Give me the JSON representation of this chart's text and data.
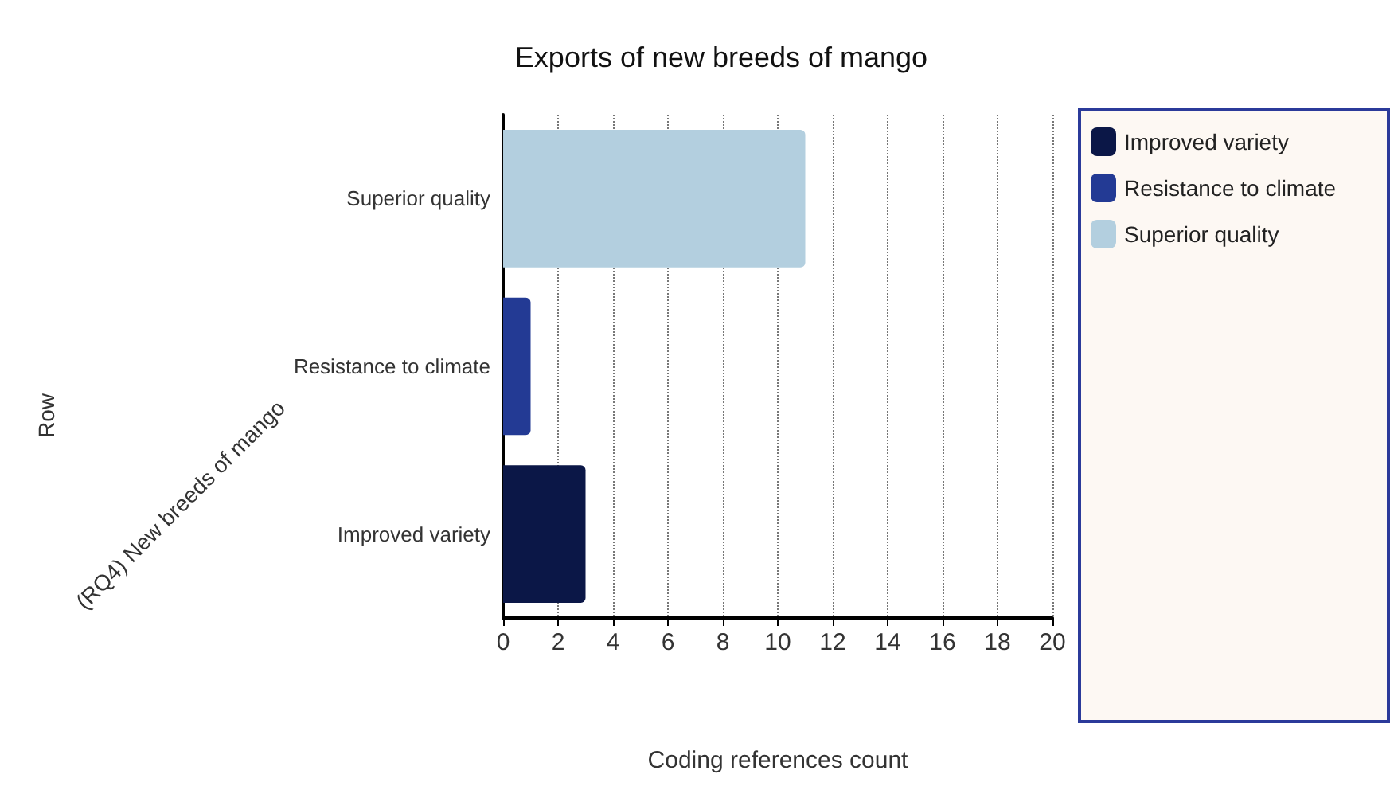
{
  "chart_data": {
    "type": "bar",
    "orientation": "horizontal",
    "title": "Exports of new breeds of mango",
    "xlabel": "Coding references count",
    "ylabel": "(RQ4) New breeds of mango",
    "annotations": [
      "Row"
    ],
    "categories": [
      "Superior quality",
      "Resistance to climate",
      "Improved variety"
    ],
    "series": [
      {
        "name": "Improved variety",
        "color": "#0b1747",
        "values": [
          null,
          null,
          3
        ]
      },
      {
        "name": "Resistance to climate",
        "color": "#233a94",
        "values": [
          null,
          1,
          null
        ]
      },
      {
        "name": "Superior quality",
        "color": "#b3cfdf",
        "values": [
          11,
          null,
          null
        ]
      }
    ],
    "xlim": [
      0,
      20
    ],
    "xticks": [
      0,
      2,
      4,
      6,
      8,
      10,
      12,
      14,
      16,
      18,
      20
    ],
    "grid": "x",
    "legend": "right"
  }
}
